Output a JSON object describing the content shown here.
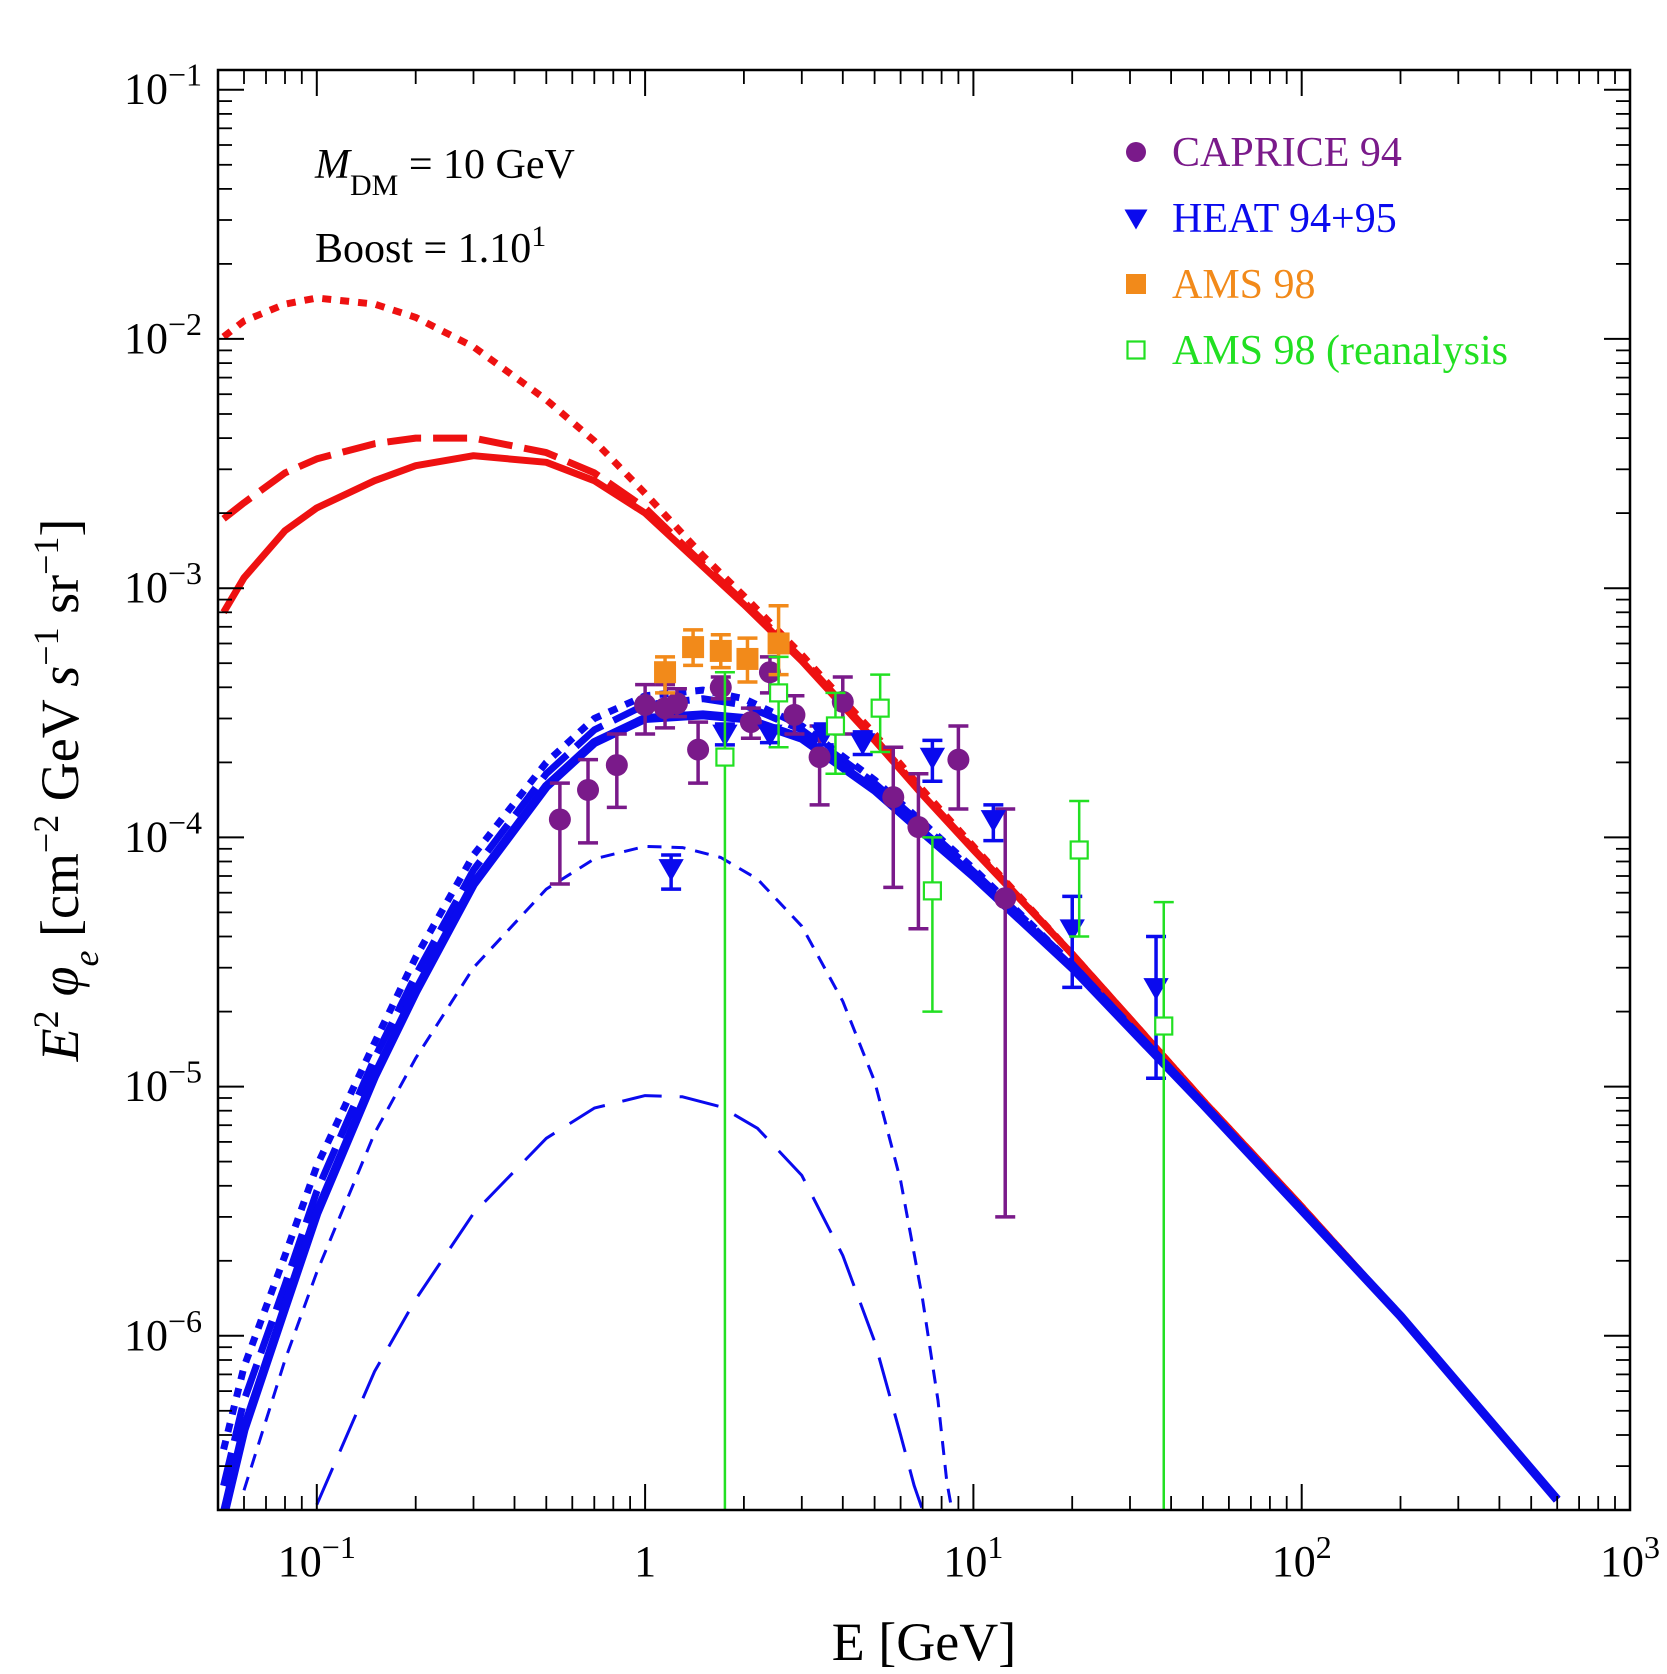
{
  "chart_data": {
    "type": "scatter",
    "xscale": "log",
    "yscale": "log",
    "xlim": [
      0.05,
      1000
    ],
    "ylim": [
      2e-07,
      0.12
    ],
    "xlabel": "E [GeV]",
    "ylabel": {
      "base": "E",
      "sup1": "2",
      "phi": "φ",
      "sub": "e",
      "open": " [cm",
      "sup2": "−2",
      "gev": " GeV ",
      "s": "s",
      "sup3": "−1",
      "sr": " sr",
      "sup4": "−1",
      "close": "]"
    },
    "xticks": [
      {
        "value": 0.1,
        "base": "10",
        "exp": "−1"
      },
      {
        "value": 1,
        "base": "1",
        "exp": ""
      },
      {
        "value": 10,
        "base": "10",
        "exp": "1"
      },
      {
        "value": 100,
        "base": "10",
        "exp": "2"
      },
      {
        "value": 1000,
        "base": "10",
        "exp": "3"
      }
    ],
    "yticks": [
      {
        "value": 0.1,
        "base": "10",
        "exp": "−1"
      },
      {
        "value": 0.01,
        "base": "10",
        "exp": "−2"
      },
      {
        "value": 0.001,
        "base": "10",
        "exp": "−3"
      },
      {
        "value": 0.0001,
        "base": "10",
        "exp": "−4"
      },
      {
        "value": 1e-05,
        "base": "10",
        "exp": "−5"
      },
      {
        "value": 1e-06,
        "base": "10",
        "exp": "−6"
      }
    ],
    "annotations": {
      "mass": {
        "m": "M",
        "sub": "DM",
        "rest": " = 10 GeV"
      },
      "boost": {
        "text": "Boost = 1.10",
        "sup": "1"
      }
    },
    "legend": [
      {
        "label": "CAPRICE 94",
        "color": "#7a1a8a",
        "marker": "circle"
      },
      {
        "label": "HEAT 94+95",
        "color": "#0a0aee",
        "marker": "triangle-down"
      },
      {
        "label": "AMS 98",
        "color": "#f28a1a",
        "marker": "square-filled"
      },
      {
        "label": "AMS 98 (reanalysis",
        "color": "#22e022",
        "marker": "square-open"
      }
    ],
    "series": [
      {
        "name": "total-max",
        "color": "#ee1111",
        "style": "dotted",
        "width": 7,
        "x": [
          0.052,
          0.06,
          0.08,
          0.1,
          0.15,
          0.2,
          0.3,
          0.5,
          0.7,
          1,
          1.5,
          2,
          3,
          5,
          7,
          10,
          20,
          50,
          100,
          200,
          600
        ],
        "y": [
          0.0102,
          0.0118,
          0.0138,
          0.0146,
          0.0138,
          0.0122,
          0.0093,
          0.0057,
          0.0039,
          0.0024,
          0.00135,
          0.00093,
          0.00054,
          0.00026,
          0.000155,
          9.2e-05,
          3.4e-05,
          8.8e-06,
          3.3e-06,
          1.2e-06,
          2.2e-07
        ]
      },
      {
        "name": "total-med",
        "color": "#ee1111",
        "style": "dashed",
        "width": 7,
        "x": [
          0.052,
          0.06,
          0.08,
          0.1,
          0.15,
          0.2,
          0.3,
          0.5,
          0.7,
          1,
          1.5,
          2,
          3,
          5,
          7,
          10,
          20,
          50,
          100,
          200,
          600
        ],
        "y": [
          0.0019,
          0.0022,
          0.0029,
          0.0033,
          0.0038,
          0.004,
          0.004,
          0.0035,
          0.0029,
          0.0021,
          0.00125,
          0.00088,
          0.00052,
          0.00025,
          0.00015,
          9e-05,
          3.4e-05,
          8.8e-06,
          3.3e-06,
          1.2e-06,
          2.2e-07
        ]
      },
      {
        "name": "total-min",
        "color": "#ee1111",
        "style": "solid",
        "width": 7,
        "x": [
          0.052,
          0.06,
          0.08,
          0.1,
          0.15,
          0.2,
          0.3,
          0.5,
          0.7,
          1,
          1.5,
          2,
          3,
          5,
          7,
          10,
          20,
          50,
          100,
          200,
          600
        ],
        "y": [
          0.0008,
          0.0011,
          0.0017,
          0.0021,
          0.0027,
          0.0031,
          0.0034,
          0.0032,
          0.0027,
          0.002,
          0.00122,
          0.00086,
          0.00051,
          0.000245,
          0.000148,
          8.9e-05,
          3.4e-05,
          8.8e-06,
          3.3e-06,
          1.2e-06,
          2.2e-07
        ]
      },
      {
        "name": "background-max",
        "color": "#0a0aee",
        "style": "dotted",
        "width": 7,
        "x": [
          0.052,
          0.06,
          0.08,
          0.1,
          0.15,
          0.2,
          0.3,
          0.5,
          0.7,
          1,
          1.5,
          2,
          3,
          5,
          7,
          10,
          20,
          50,
          100,
          200,
          600
        ],
        "y": [
          3.5e-07,
          7.5e-07,
          2.1e-06,
          4.8e-06,
          1.5e-05,
          3.3e-05,
          8.5e-05,
          0.0002,
          0.0003,
          0.00037,
          0.00039,
          0.00036,
          0.00028,
          0.00017,
          0.000115,
          7.5e-05,
          3.1e-05,
          8.6e-06,
          3.2e-06,
          1.2e-06,
          2.2e-07
        ]
      },
      {
        "name": "background-med",
        "color": "#0a0aee",
        "style": "dashed",
        "width": 7,
        "x": [
          0.052,
          0.06,
          0.08,
          0.1,
          0.15,
          0.2,
          0.3,
          0.5,
          0.7,
          1,
          1.5,
          2,
          3,
          5,
          7,
          10,
          20,
          50,
          100,
          200,
          600
        ],
        "y": [
          2.5e-07,
          5.5e-07,
          1.6e-06,
          3.8e-06,
          1.3e-05,
          2.8e-05,
          7.4e-05,
          0.00018,
          0.00027,
          0.00034,
          0.00036,
          0.00034,
          0.00027,
          0.000165,
          0.000112,
          7.3e-05,
          3.1e-05,
          8.6e-06,
          3.2e-06,
          1.2e-06,
          2.2e-07
        ]
      },
      {
        "name": "background-min",
        "color": "#0a0aee",
        "style": "solid",
        "width": 9,
        "x": [
          0.052,
          0.06,
          0.08,
          0.1,
          0.15,
          0.2,
          0.3,
          0.5,
          0.7,
          1,
          1.5,
          2,
          3,
          5,
          7,
          10,
          20,
          50,
          100,
          200,
          600
        ],
        "y": [
          1.9e-07,
          4.2e-07,
          1.3e-06,
          3.1e-06,
          1.1e-05,
          2.4e-05,
          6.5e-05,
          0.00016,
          0.00024,
          0.0003,
          0.00031,
          0.0003,
          0.00025,
          0.000155,
          0.000105,
          7e-05,
          3e-05,
          8.5e-06,
          3.2e-06,
          1.2e-06,
          2.2e-07
        ]
      },
      {
        "name": "signal-short-dash",
        "color": "#0a0aee",
        "style": "short-dash",
        "width": 3,
        "x": [
          0.06,
          0.08,
          0.1,
          0.15,
          0.2,
          0.3,
          0.5,
          0.7,
          1,
          1.3,
          1.7,
          2.2,
          3,
          4,
          5,
          6,
          7,
          7.8,
          8.3,
          8.6
        ],
        "y": [
          2.4e-07,
          8e-07,
          1.8e-06,
          6.5e-06,
          1.3e-05,
          3e-05,
          6.2e-05,
          8.2e-05,
          9.2e-05,
          9.1e-05,
          8.3e-05,
          6.8e-05,
          4.4e-05,
          2.2e-05,
          1.05e-05,
          4.2e-06,
          1.4e-06,
          5.5e-07,
          2.6e-07,
          2e-07
        ]
      },
      {
        "name": "signal-long-dash",
        "color": "#0a0aee",
        "style": "long-dash",
        "width": 3,
        "x": [
          0.1,
          0.15,
          0.2,
          0.3,
          0.5,
          0.7,
          1,
          1.3,
          1.7,
          2.2,
          3,
          4,
          5,
          6,
          6.6,
          7
        ],
        "y": [
          2.1e-07,
          7.2e-07,
          1.4e-06,
          3.1e-06,
          6.2e-06,
          8.2e-06,
          9.2e-06,
          9.1e-06,
          8.3e-06,
          6.8e-06,
          4.4e-06,
          2.1e-06,
          9.5e-07,
          4e-07,
          2.5e-07,
          2e-07
        ]
      }
    ],
    "data_sets": [
      {
        "name": "CAPRICE 94",
        "color": "#7a1a8a",
        "marker": "circle",
        "points": [
          {
            "x": 0.55,
            "y": 0.000118,
            "lo": 6.5e-05,
            "hi": 0.000165
          },
          {
            "x": 0.67,
            "y": 0.000155,
            "lo": 9.5e-05,
            "hi": 0.000205
          },
          {
            "x": 0.82,
            "y": 0.000195,
            "lo": 0.000132,
            "hi": 0.00026
          },
          {
            "x": 1.0,
            "y": 0.00034,
            "lo": 0.00026,
            "hi": 0.00041
          },
          {
            "x": 1.15,
            "y": 0.00033,
            "lo": 0.000275,
            "hi": 0.00041
          },
          {
            "x": 1.25,
            "y": 0.000345,
            "lo": 0.000305,
            "hi": 0.000395
          },
          {
            "x": 1.45,
            "y": 0.000225,
            "lo": 0.000165,
            "hi": 0.00029
          },
          {
            "x": 1.7,
            "y": 0.0004,
            "lo": 0.00036,
            "hi": 0.00044
          },
          {
            "x": 2.1,
            "y": 0.00029,
            "lo": 0.00025,
            "hi": 0.00033
          },
          {
            "x": 2.4,
            "y": 0.00046,
            "lo": 0.00038,
            "hi": 0.00053
          },
          {
            "x": 2.85,
            "y": 0.00031,
            "lo": 0.00026,
            "hi": 0.00037
          },
          {
            "x": 3.4,
            "y": 0.00021,
            "lo": 0.000135,
            "hi": 0.00028
          },
          {
            "x": 4.0,
            "y": 0.00035,
            "lo": 0.00026,
            "hi": 0.00044
          },
          {
            "x": 5.7,
            "y": 0.000145,
            "lo": 6.3e-05,
            "hi": 0.00023
          },
          {
            "x": 6.8,
            "y": 0.00011,
            "lo": 4.3e-05,
            "hi": 0.00018
          },
          {
            "x": 9.0,
            "y": 0.000205,
            "lo": 0.00013,
            "hi": 0.00028
          },
          {
            "x": 12.5,
            "y": 5.7e-05,
            "lo": 3e-06,
            "hi": 0.00013
          }
        ]
      },
      {
        "name": "HEAT 94+95",
        "color": "#0a0aee",
        "marker": "triangle-down",
        "points": [
          {
            "x": 1.2,
            "y": 7.5e-05,
            "lo": 6.2e-05,
            "hi": 8.5e-05
          },
          {
            "x": 1.75,
            "y": 0.00026,
            "lo": 0.000235,
            "hi": 0.000285
          },
          {
            "x": 2.4,
            "y": 0.00026,
            "lo": 0.00024,
            "hi": 0.00028
          },
          {
            "x": 3.5,
            "y": 0.00026,
            "lo": 0.000235,
            "hi": 0.000285
          },
          {
            "x": 4.6,
            "y": 0.00024,
            "lo": 0.000215,
            "hi": 0.000265
          },
          {
            "x": 7.5,
            "y": 0.00021,
            "lo": 0.000168,
            "hi": 0.000245
          },
          {
            "x": 11.5,
            "y": 0.000118,
            "lo": 9.7e-05,
            "hi": 0.000135
          },
          {
            "x": 20,
            "y": 4.3e-05,
            "lo": 2.5e-05,
            "hi": 5.8e-05
          },
          {
            "x": 36,
            "y": 2.5e-05,
            "lo": 1.08e-05,
            "hi": 4e-05
          }
        ]
      },
      {
        "name": "AMS 98",
        "color": "#f28a1a",
        "marker": "square-filled",
        "points": [
          {
            "x": 1.15,
            "y": 0.00046,
            "lo": 0.00038,
            "hi": 0.00053
          },
          {
            "x": 1.4,
            "y": 0.00058,
            "lo": 0.00049,
            "hi": 0.00068
          },
          {
            "x": 1.7,
            "y": 0.00056,
            "lo": 0.00048,
            "hi": 0.00065
          },
          {
            "x": 2.05,
            "y": 0.00052,
            "lo": 0.00042,
            "hi": 0.00063
          },
          {
            "x": 2.55,
            "y": 0.0006,
            "lo": 0.00045,
            "hi": 0.00085
          }
        ]
      },
      {
        "name": "AMS 98 (reanalysis",
        "color": "#22e022",
        "marker": "square-open",
        "points": [
          {
            "x": 1.75,
            "y": 0.00021,
            "lo": 1e-07,
            "hi": 0.00046
          },
          {
            "x": 2.55,
            "y": 0.00038,
            "lo": 0.00023,
            "hi": 0.00053
          },
          {
            "x": 3.8,
            "y": 0.00028,
            "lo": 0.00018,
            "hi": 0.00038
          },
          {
            "x": 5.2,
            "y": 0.00033,
            "lo": 0.00022,
            "hi": 0.00045
          },
          {
            "x": 7.5,
            "y": 6.1e-05,
            "lo": 2e-05,
            "hi": 0.0001
          },
          {
            "x": 21,
            "y": 8.9e-05,
            "lo": 4e-05,
            "hi": 0.00014
          },
          {
            "x": 38,
            "y": 1.75e-05,
            "lo": 1e-07,
            "hi": 5.5e-05
          }
        ]
      }
    ]
  }
}
